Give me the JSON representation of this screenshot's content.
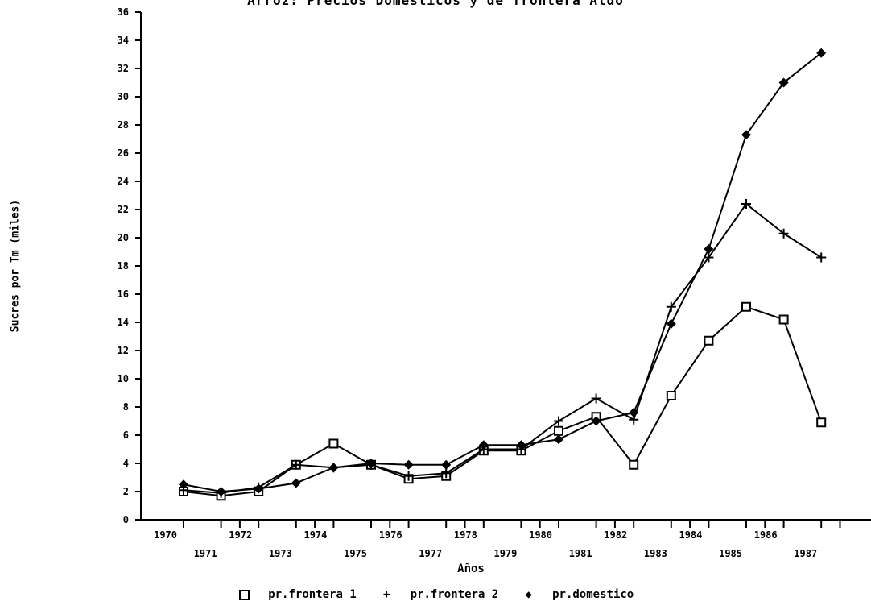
{
  "chart_data": {
    "type": "line",
    "title": "Arroz: Precios Domesticos y de frontera Aldo",
    "xlabel": "Años",
    "ylabel": "Sucres por Tm (miles)",
    "x": [
      1970,
      1971,
      1972,
      1973,
      1974,
      1975,
      1976,
      1977,
      1978,
      1979,
      1980,
      1981,
      1982,
      1983,
      1984,
      1985,
      1986,
      1987
    ],
    "x_tick_labels": [
      "1970",
      "1971",
      "1972",
      "1973",
      "1974",
      "1975",
      "1976",
      "1977",
      "1978",
      "1979",
      "1980",
      "1981",
      "1982",
      "1983",
      "1984",
      "1985",
      "1986",
      "1987"
    ],
    "ylim": [
      0,
      36
    ],
    "y_ticks": [
      0,
      2,
      4,
      6,
      8,
      10,
      12,
      14,
      16,
      18,
      20,
      22,
      24,
      26,
      28,
      30,
      32,
      34,
      36
    ],
    "y_tick_labels": [
      "0",
      "2",
      "4",
      "6",
      "8",
      "10",
      "12",
      "14",
      "16",
      "18",
      "20",
      "22",
      "24",
      "26",
      "28",
      "30",
      "32",
      "34",
      "36"
    ],
    "grid": false,
    "legend_position": "bottom",
    "series": [
      {
        "name": "pr.frontera 1",
        "marker": "square",
        "values": [
          2.0,
          1.7,
          2.0,
          3.9,
          5.4,
          3.9,
          2.9,
          3.1,
          4.9,
          4.9,
          6.3,
          7.3,
          3.9,
          8.8,
          12.7,
          15.1,
          14.2,
          6.9
        ]
      },
      {
        "name": "pr.frontera 2",
        "marker": "plus",
        "values": [
          2.1,
          1.9,
          2.3,
          3.9,
          3.7,
          3.9,
          3.1,
          3.3,
          5.0,
          5.0,
          7.0,
          8.6,
          7.1,
          15.1,
          18.6,
          22.4,
          20.3,
          18.6
        ]
      },
      {
        "name": "pr.domestico",
        "marker": "diamond",
        "values": [
          2.5,
          2.0,
          2.2,
          2.6,
          3.7,
          4.0,
          3.9,
          3.9,
          5.3,
          5.3,
          5.7,
          7.0,
          7.6,
          13.9,
          19.2,
          27.3,
          31.0,
          33.1
        ]
      }
    ]
  }
}
